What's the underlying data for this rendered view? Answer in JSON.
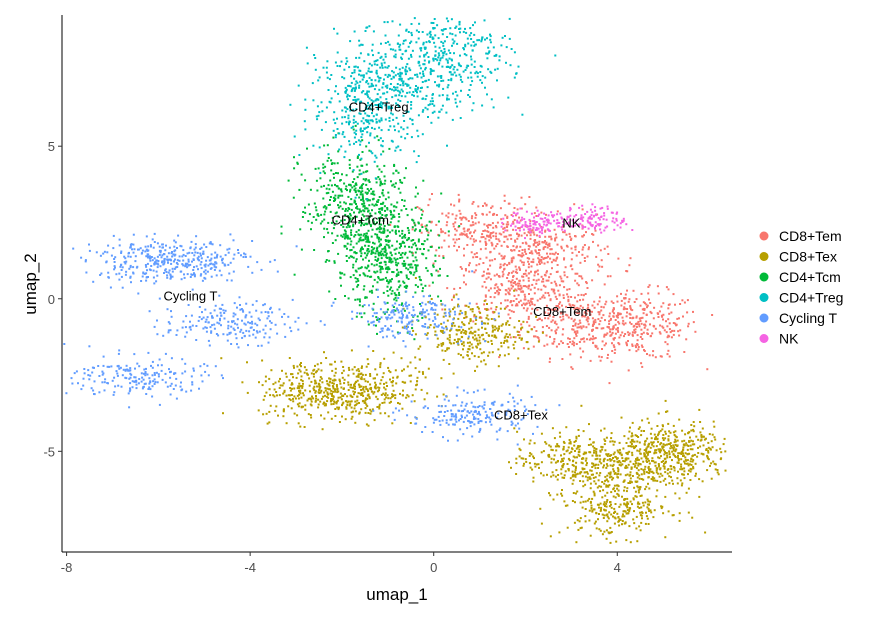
{
  "chart_data": {
    "type": "scatter",
    "xlabel": "umap_1",
    "ylabel": "umap_2",
    "xlim": [
      -8.1,
      6.5
    ],
    "ylim": [
      -8.3,
      9.3
    ],
    "xticks": [
      -8,
      -4,
      0,
      4
    ],
    "yticks": [
      -5,
      0,
      5
    ],
    "grid": false,
    "legend_position": "right",
    "series": [
      {
        "name": "CD8+Tem",
        "color": "#F8766D",
        "centers": [
          [
            3.2,
            -0.8
          ],
          [
            4.5,
            -0.9
          ],
          [
            1.8,
            0.3
          ],
          [
            1.0,
            2.2
          ],
          [
            2.5,
            1.5
          ]
        ]
      },
      {
        "name": "CD8+Tex",
        "color": "#B79F00",
        "centers": [
          [
            -1.5,
            -3.0
          ],
          [
            -2.6,
            -3.0
          ],
          [
            0.8,
            -1.1
          ],
          [
            3.0,
            -5.3
          ],
          [
            4.6,
            -5.3
          ],
          [
            5.3,
            -5.0
          ],
          [
            4.0,
            -6.8
          ]
        ]
      },
      {
        "name": "CD4+Tcm",
        "color": "#00BA38",
        "centers": [
          [
            -1.8,
            3.2
          ],
          [
            -1.2,
            2.2
          ],
          [
            -1.0,
            1.0
          ]
        ]
      },
      {
        "name": "CD4+Treg",
        "color": "#00BFC4",
        "centers": [
          [
            -1.5,
            6.3
          ],
          [
            -0.8,
            7.2
          ],
          [
            0.5,
            7.9
          ]
        ]
      },
      {
        "name": "Cycling T",
        "color": "#619CFF",
        "centers": [
          [
            -6.2,
            1.2
          ],
          [
            -5.3,
            1.3
          ],
          [
            -6.4,
            -2.6
          ],
          [
            0.8,
            -3.8
          ],
          [
            -0.5,
            -0.6
          ],
          [
            -4.5,
            -0.8
          ]
        ]
      },
      {
        "name": "NK",
        "color": "#F564E3",
        "centers": [
          [
            2.3,
            2.5
          ],
          [
            3.5,
            2.6
          ]
        ]
      }
    ],
    "cluster_labels": [
      {
        "text": "CD4+Treg",
        "x": -1.2,
        "y": 6.3
      },
      {
        "text": "CD4+Tcm",
        "x": -1.6,
        "y": 2.6
      },
      {
        "text": "NK",
        "x": 3.0,
        "y": 2.5
      },
      {
        "text": "Cycling T",
        "x": -5.3,
        "y": 0.1
      },
      {
        "text": "CD8+Tem",
        "x": 2.8,
        "y": -0.4
      },
      {
        "text": "CD8+Tex",
        "x": 1.9,
        "y": -3.8
      }
    ]
  }
}
